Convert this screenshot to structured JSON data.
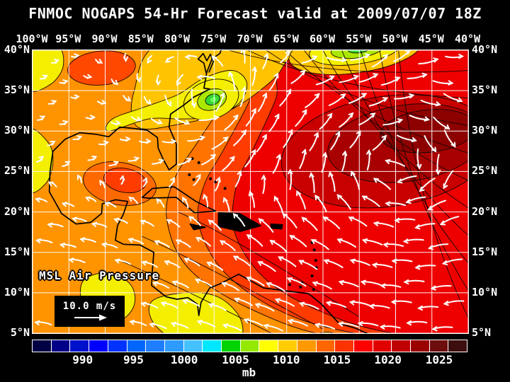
{
  "title": "FNMOC NOGAPS 54-Hr Forecast valid at 2009/07/07 18Z",
  "map": {
    "lon_labels": [
      "100°W",
      "95°W",
      "90°W",
      "85°W",
      "80°W",
      "75°W",
      "70°W",
      "65°W",
      "60°W",
      "55°W",
      "50°W",
      "45°W",
      "40°W"
    ],
    "lat_labels": [
      "40°N",
      "35°N",
      "30°N",
      "25°N",
      "20°N",
      "15°N",
      "10°N",
      "5°N"
    ],
    "field_label": "MSL Air Pressure",
    "wind_legend": "10.0 m/s"
  },
  "colorbar": {
    "labels": [
      "990",
      "995",
      "1000",
      "1005",
      "1010",
      "1015",
      "1020",
      "1025"
    ],
    "unit": "mb",
    "colors": [
      "#000044",
      "#000088",
      "#0011cc",
      "#0000ff",
      "#0033ff",
      "#0066ff",
      "#1e7eff",
      "#2e9bff",
      "#45c1ff",
      "#00e8ff",
      "#00d400",
      "#95e800",
      "#ffff00",
      "#ffcc00",
      "#ff9900",
      "#ff6600",
      "#ff3300",
      "#ff0000",
      "#e00000",
      "#c00000",
      "#9a0000",
      "#6e0d0d",
      "#3c0e0e"
    ]
  },
  "chart_data": {
    "type": "heatmap",
    "title": "FNMOC NOGAPS 54-Hr Forecast valid at 2009/07/07 18Z",
    "model": "FNMOC NOGAPS",
    "forecast_hour": 54,
    "valid_time": "2009/07/07 18Z",
    "variable": "MSL Air Pressure",
    "unit": "mb",
    "lon_ticks_degW": [
      100,
      95,
      90,
      85,
      80,
      75,
      70,
      65,
      60,
      55,
      50,
      45,
      40
    ],
    "lat_ticks_degN": [
      40,
      35,
      30,
      25,
      20,
      15,
      10,
      5
    ],
    "colorbar_values_mb": [
      990,
      995,
      1000,
      1005,
      1010,
      1015,
      1020,
      1025
    ],
    "wind_reference_speed": "10.0 m/s",
    "features": [
      {
        "name": "low-pressure-center",
        "lon_degW": 75.3,
        "lat_degN": 33.9,
        "approx_value_mb": 1002
      },
      {
        "name": "low-pressure-center",
        "lon_degW": 55.0,
        "lat_degN": 40.3,
        "approx_value_mb": 1001
      },
      {
        "name": "subtropical-high-center",
        "lon_degW": 46.0,
        "lat_degN": 30.0,
        "approx_value_mb": 1022
      },
      {
        "name": "trade-wind-easterlies",
        "region": "Caribbean 5-20N",
        "direction": "westward"
      },
      {
        "name": "southwesterly-flow",
        "region": "NW Atlantic 25-40N",
        "direction": "northeastward"
      }
    ]
  }
}
